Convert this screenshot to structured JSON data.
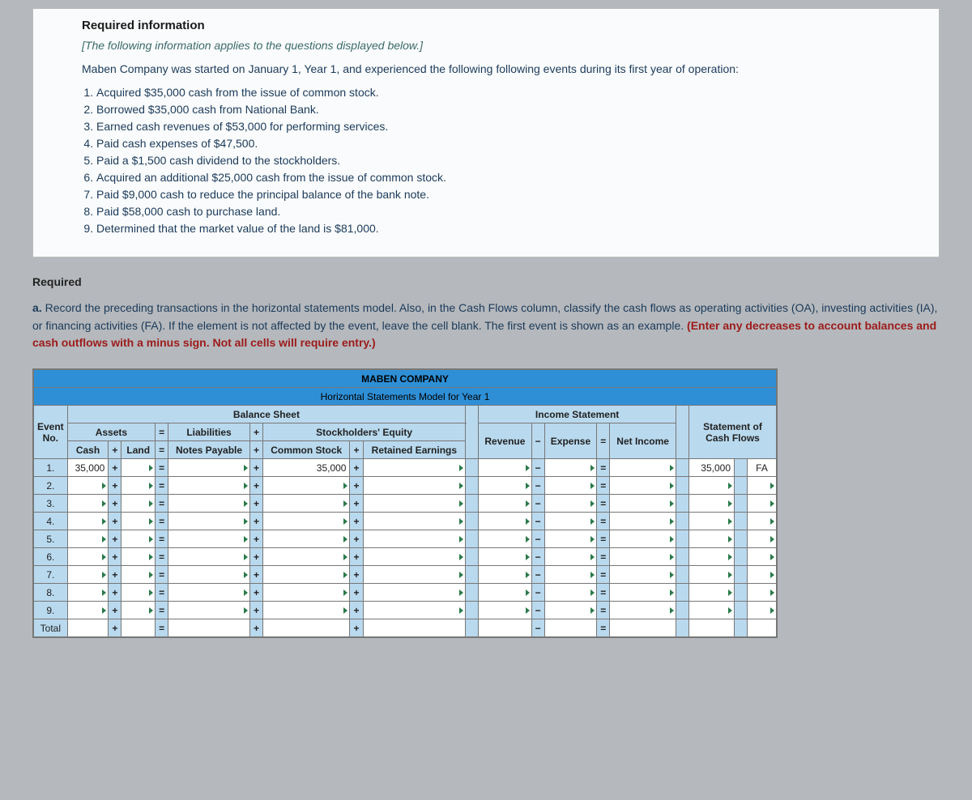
{
  "info": {
    "heading": "Required information",
    "applies": "[The following information applies to the questions displayed below.]",
    "narrative": "Maben Company was started on January 1, Year 1, and experienced the following following events during its first year of operation:",
    "events": [
      "Acquired $35,000 cash from the issue of common stock.",
      "Borrowed $35,000 cash from National Bank.",
      "Earned cash revenues of $53,000 for performing services.",
      "Paid cash expenses of $47,500.",
      "Paid a $1,500 cash dividend to the stockholders.",
      "Acquired an additional $25,000 cash from the issue of common stock.",
      "Paid $9,000 cash to reduce the principal balance of the bank note.",
      "Paid $58,000 cash to purchase land.",
      "Determined that the market value of the land is $81,000."
    ]
  },
  "required": {
    "title": "Required",
    "label": "a.",
    "body": "Record the preceding transactions in the horizontal statements model. Also, in the Cash Flows column, classify the cash flows as operating activities (OA), investing activities (IA), or financing activities (FA). If the element is not affected by the event, leave the cell blank. The first event is shown as an example. ",
    "instr_red": "(Enter any decreases to account balances and cash outflows with a minus sign. Not all cells will require entry.)"
  },
  "table": {
    "company": "MABEN COMPANY",
    "subtitle": "Horizontal Statements Model for Year 1",
    "balance_sheet": "Balance Sheet",
    "income_stmt": "Income Statement",
    "event_no": "Event No.",
    "assets": "Assets",
    "liabilities": "Liabilities",
    "stockholders": "Stockholders' Equity",
    "cash": "Cash",
    "land": "Land",
    "notes_payable": "Notes Payable",
    "common_stock": "Common Stock",
    "retained_earnings": "Retained Earnings",
    "revenue": "Revenue",
    "expense": "Expense",
    "net_income": "Net Income",
    "stmt_cf": "Statement of Cash Flows",
    "total": "Total",
    "rows": [
      "1.",
      "2.",
      "3.",
      "4.",
      "5.",
      "6.",
      "7.",
      "8.",
      "9."
    ],
    "example": {
      "cash": "35,000",
      "common_stock": "35,000",
      "cf_amount": "35,000",
      "cf_type": "FA"
    },
    "ops": {
      "plus": "+",
      "equals": "=",
      "minus": "−"
    },
    "colors": {
      "header_blue": "#2e8fd6",
      "light_blue": "#b9d9ee",
      "med_blue": "#7dbce4",
      "border": "#777777",
      "page_bg": "#b5b8bc"
    }
  }
}
